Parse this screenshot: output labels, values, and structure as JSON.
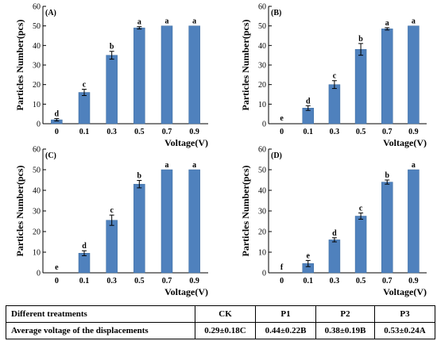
{
  "chart_data": [
    {
      "type": "bar",
      "panel_label": "(A)",
      "categories": [
        "0",
        "0.1",
        "0.3",
        "0.5",
        "0.7",
        "0.9"
      ],
      "values": [
        2,
        16,
        35,
        49,
        50,
        50
      ],
      "errors": [
        0.6,
        1.6,
        2.0,
        0.6,
        0,
        0
      ],
      "letters": [
        "d",
        "c",
        "b",
        "a",
        "a",
        "a"
      ],
      "xlabel": "Voltage(V)",
      "ylabel": "Particles Number(pcs)",
      "ylim": [
        0,
        60
      ],
      "yticks": [
        0,
        10,
        20,
        30,
        40,
        50,
        60
      ],
      "bar_color": "#4f81bd",
      "grid": false
    },
    {
      "type": "bar",
      "panel_label": "(B)",
      "categories": [
        "0",
        "0.1",
        "0.3",
        "0.5",
        "0.7",
        "0.9"
      ],
      "values": [
        0,
        8,
        20,
        38,
        48.5,
        50
      ],
      "errors": [
        0,
        1.2,
        2.0,
        3.0,
        0.6,
        0
      ],
      "letters": [
        "e",
        "d",
        "c",
        "b",
        "a",
        "a"
      ],
      "xlabel": "Voltage(V)",
      "ylabel": "Particles Number(pcs)",
      "ylim": [
        0,
        60
      ],
      "yticks": [
        0,
        10,
        20,
        30,
        40,
        50,
        60
      ],
      "bar_color": "#4f81bd",
      "grid": false
    },
    {
      "type": "bar",
      "panel_label": "(C)",
      "categories": [
        "0",
        "0.1",
        "0.3",
        "0.5",
        "0.7",
        "0.9"
      ],
      "values": [
        0,
        9.5,
        25.5,
        43,
        50,
        50
      ],
      "errors": [
        0,
        1.2,
        2.5,
        1.8,
        0,
        0
      ],
      "letters": [
        "e",
        "d",
        "c",
        "b",
        "a",
        "a"
      ],
      "xlabel": "Voltage(V)",
      "ylabel": "Particles Number(pcs)",
      "ylim": [
        0,
        60
      ],
      "yticks": [
        0,
        10,
        20,
        30,
        40,
        50,
        60
      ],
      "bar_color": "#4f81bd",
      "grid": false
    },
    {
      "type": "bar",
      "panel_label": "(D)",
      "categories": [
        "0",
        "0.1",
        "0.3",
        "0.5",
        "0.7",
        "0.9"
      ],
      "values": [
        0,
        4.5,
        16,
        27.5,
        44,
        50
      ],
      "errors": [
        0,
        1.5,
        1.0,
        1.5,
        1.0,
        0
      ],
      "letters": [
        "f",
        "e",
        "d",
        "c",
        "b",
        "a"
      ],
      "xlabel": "Voltage(V)",
      "ylabel": "Particles Number(pcs)",
      "ylim": [
        0,
        60
      ],
      "yticks": [
        0,
        10,
        20,
        30,
        40,
        50,
        60
      ],
      "bar_color": "#4f81bd",
      "grid": false
    }
  ],
  "table": {
    "header": [
      "Different treatments",
      "CK",
      "P1",
      "P2",
      "P3"
    ],
    "row": [
      "Average voltage of the displacements",
      "0.29±0.18C",
      "0.44±0.22B",
      "0.38±0.19B",
      "0.53±0.24A"
    ]
  }
}
